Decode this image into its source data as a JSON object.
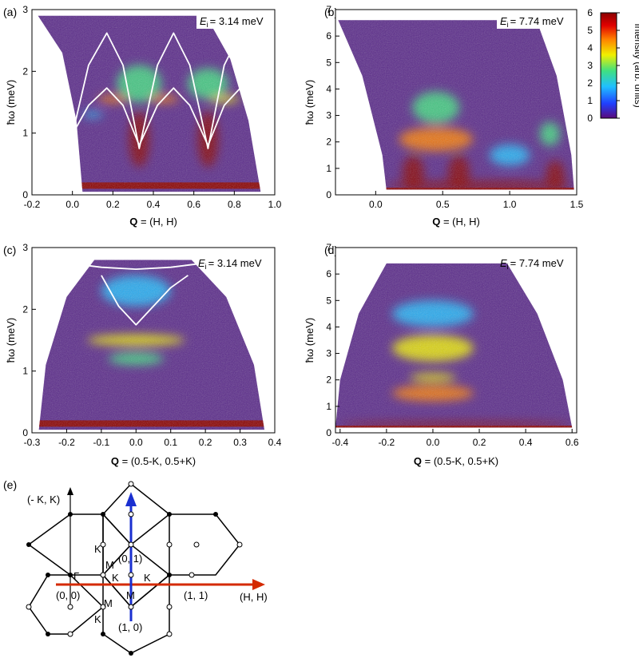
{
  "colors": {
    "map_stops": [
      "#5a0a7a",
      "#2040ff",
      "#20c0ff",
      "#40e080",
      "#f0f000",
      "#ff8000",
      "#e00000",
      "#8a0000"
    ],
    "background_map": "#5a2a8a",
    "low_energy_fill": "#8a0000",
    "dispersion_curve": "#ffffff",
    "arrow_HH": "#d42a00",
    "arrow_K": "#1a2fd0",
    "hexagon": "#000000"
  },
  "colorbar": {
    "label": "Intensity (arb. units)",
    "ticks": [
      "6",
      "5",
      "4",
      "3",
      "2",
      "1",
      "0"
    ],
    "min": 0,
    "max": 6
  },
  "chart_data": [
    {
      "id": "a",
      "panel_label": "(a)",
      "type": "heatmap",
      "ei_symbol": "E",
      "ei_sub": "i",
      "ei_value": "= 3.14 meV",
      "xlabel_bold": "Q",
      "xlabel_rest": "= (H, H)",
      "ylabel": "ħω (meV)",
      "xticks": [
        "-0.2",
        "0.0",
        "0.2",
        "0.4",
        "0.6",
        "0.8",
        "1.0"
      ],
      "yticks": [
        "0",
        "1",
        "2",
        "3"
      ],
      "xlim": [
        -0.2,
        1.0
      ],
      "ylim": [
        0,
        3
      ],
      "coverage": {
        "emax_top": 2.9,
        "left_curve": [
          [
            -0.17,
            2.9
          ],
          [
            -0.05,
            2.3
          ],
          [
            0.02,
            1.2
          ],
          [
            0.05,
            0.05
          ]
        ],
        "right_curve": [
          [
            0.66,
            2.9
          ],
          [
            0.78,
            2.2
          ],
          [
            0.87,
            1.2
          ],
          [
            0.93,
            0.05
          ]
        ]
      },
      "curves": [
        {
          "name": "upper",
          "points": [
            [
              0.0,
              0.98
            ],
            [
              0.08,
              2.1
            ],
            [
              0.17,
              2.62
            ],
            [
              0.25,
              2.1
            ],
            [
              0.33,
              0.75
            ],
            [
              0.42,
              2.1
            ],
            [
              0.5,
              2.62
            ],
            [
              0.58,
              2.1
            ],
            [
              0.67,
              0.75
            ],
            [
              0.75,
              2.1
            ],
            [
              0.83,
              2.62
            ]
          ]
        },
        {
          "name": "lower",
          "points": [
            [
              0.0,
              0.98
            ],
            [
              0.08,
              1.45
            ],
            [
              0.17,
              1.73
            ],
            [
              0.25,
              1.45
            ],
            [
              0.33,
              0.8
            ],
            [
              0.42,
              1.45
            ],
            [
              0.5,
              1.73
            ],
            [
              0.58,
              1.45
            ],
            [
              0.67,
              0.8
            ],
            [
              0.75,
              1.45
            ],
            [
              0.83,
              1.73
            ]
          ]
        }
      ],
      "features": [
        {
          "x": 0.33,
          "y": 0.9,
          "w": 0.1,
          "h": 0.9,
          "level": 7
        },
        {
          "x": 0.67,
          "y": 0.9,
          "w": 0.1,
          "h": 0.9,
          "level": 7
        },
        {
          "x": 0.2,
          "y": 1.55,
          "w": 0.15,
          "h": 0.12,
          "level": 5
        },
        {
          "x": 0.45,
          "y": 1.55,
          "w": 0.15,
          "h": 0.12,
          "level": 5
        },
        {
          "x": 0.75,
          "y": 1.55,
          "w": 0.15,
          "h": 0.12,
          "level": 4
        },
        {
          "x": 0.33,
          "y": 1.8,
          "w": 0.22,
          "h": 0.6,
          "level": 3
        },
        {
          "x": 0.67,
          "y": 1.8,
          "w": 0.2,
          "h": 0.5,
          "level": 3
        },
        {
          "x": 0.1,
          "y": 1.3,
          "w": 0.1,
          "h": 0.1,
          "level": 2
        }
      ]
    },
    {
      "id": "b",
      "panel_label": "(b)",
      "type": "heatmap",
      "ei_symbol": "E",
      "ei_sub": "i",
      "ei_value": "= 7.74 meV",
      "xlabel_bold": "Q",
      "xlabel_rest": "= (H, H)",
      "ylabel": "ħω (meV)",
      "xticks": [
        "0.0",
        "0.5",
        "1.0",
        "1.5"
      ],
      "yticks": [
        "0",
        "1",
        "2",
        "3",
        "4",
        "5",
        "6",
        "7"
      ],
      "xlim": [
        -0.3,
        1.5
      ],
      "ylim": [
        0,
        7
      ],
      "coverage": {
        "emax_top": 6.6,
        "left_curve": [
          [
            -0.28,
            6.6
          ],
          [
            -0.1,
            4.5
          ],
          [
            0.05,
            1.5
          ],
          [
            0.08,
            0.2
          ]
        ],
        "right_curve": [
          [
            1.2,
            6.6
          ],
          [
            1.35,
            4.5
          ],
          [
            1.46,
            1.5
          ],
          [
            1.48,
            0.2
          ]
        ]
      },
      "curves": [],
      "features": [
        {
          "x": 0.28,
          "y": 0.8,
          "w": 0.16,
          "h": 1.4,
          "level": 7
        },
        {
          "x": 0.62,
          "y": 0.8,
          "w": 0.16,
          "h": 1.4,
          "level": 7
        },
        {
          "x": 1.34,
          "y": 0.7,
          "w": 0.14,
          "h": 1.2,
          "level": 7
        },
        {
          "x": 0.78,
          "y": 0.35,
          "w": 1.4,
          "h": 0.35,
          "level": 7
        },
        {
          "x": 0.45,
          "y": 2.1,
          "w": 0.55,
          "h": 0.9,
          "level": 5
        },
        {
          "x": 0.45,
          "y": 3.3,
          "w": 0.35,
          "h": 1.2,
          "level": 3
        },
        {
          "x": 1.0,
          "y": 1.5,
          "w": 0.3,
          "h": 0.8,
          "level": 2
        },
        {
          "x": 1.3,
          "y": 2.3,
          "w": 0.15,
          "h": 0.9,
          "level": 3
        }
      ]
    },
    {
      "id": "c",
      "panel_label": "(c)",
      "type": "heatmap",
      "ei_symbol": "E",
      "ei_sub": "i",
      "ei_value": "= 3.14 meV",
      "xlabel_bold": "Q",
      "xlabel_rest": "= (0.5-K, 0.5+K)",
      "ylabel": "ħω (meV)",
      "xticks": [
        "-0.3",
        "-0.2",
        "-0.1",
        "0.0",
        "0.1",
        "0.2",
        "0.3",
        "0.4"
      ],
      "yticks": [
        "0",
        "1",
        "2",
        "3"
      ],
      "xlim": [
        -0.3,
        0.4
      ],
      "ylim": [
        0,
        3
      ],
      "coverage": {
        "emax_top": 2.8,
        "left_curve": [
          [
            -0.12,
            2.8
          ],
          [
            -0.2,
            2.2
          ],
          [
            -0.26,
            1.1
          ],
          [
            -0.28,
            0.05
          ]
        ],
        "right_curve": [
          [
            0.16,
            2.8
          ],
          [
            0.26,
            2.2
          ],
          [
            0.34,
            1.1
          ],
          [
            0.37,
            0.05
          ]
        ]
      },
      "curves": [
        {
          "name": "upper",
          "points": [
            [
              -0.2,
              2.75
            ],
            [
              -0.1,
              2.68
            ],
            [
              0.0,
              2.65
            ],
            [
              0.1,
              2.68
            ],
            [
              0.2,
              2.75
            ]
          ]
        },
        {
          "name": "lower",
          "points": [
            [
              -0.1,
              2.55
            ],
            [
              -0.05,
              2.05
            ],
            [
              0.0,
              1.75
            ],
            [
              0.05,
              2.05
            ],
            [
              0.1,
              2.35
            ],
            [
              0.15,
              2.55
            ]
          ]
        }
      ],
      "features": [
        {
          "x": 0.0,
          "y": 1.5,
          "w": 0.28,
          "h": 0.18,
          "level": 4
        },
        {
          "x": 0.0,
          "y": 1.2,
          "w": 0.16,
          "h": 0.2,
          "level": 3
        },
        {
          "x": 0.0,
          "y": 2.3,
          "w": 0.2,
          "h": 0.5,
          "level": 2
        }
      ]
    },
    {
      "id": "d",
      "panel_label": "(d)",
      "type": "heatmap",
      "ei_symbol": "E",
      "ei_sub": "i",
      "ei_value": "= 7.74 meV",
      "xlabel_bold": "Q",
      "xlabel_rest": "= (0.5-K, 0.5+K)",
      "ylabel": "ħω (meV)",
      "xticks": [
        "-0.4",
        "-0.2",
        "0.0",
        "0.2",
        "0.4",
        "0.6"
      ],
      "yticks": [
        "0",
        "1",
        "2",
        "3",
        "4",
        "5",
        "6",
        "7"
      ],
      "xlim": [
        -0.42,
        0.62
      ],
      "ylim": [
        0,
        7
      ],
      "coverage": {
        "emax_top": 6.4,
        "left_curve": [
          [
            -0.2,
            6.4
          ],
          [
            -0.32,
            4.5
          ],
          [
            -0.4,
            2.0
          ],
          [
            -0.42,
            0.2
          ]
        ],
        "right_curve": [
          [
            0.32,
            6.4
          ],
          [
            0.45,
            4.5
          ],
          [
            0.56,
            2.0
          ],
          [
            0.6,
            0.2
          ]
        ]
      },
      "curves": [],
      "features": [
        {
          "x": 0.0,
          "y": 3.2,
          "w": 0.35,
          "h": 1.0,
          "level": 4
        },
        {
          "x": 0.0,
          "y": 1.5,
          "w": 0.35,
          "h": 0.6,
          "level": 5
        },
        {
          "x": 0.0,
          "y": 2.1,
          "w": 0.2,
          "h": 0.3,
          "level": 4
        },
        {
          "x": 0.1,
          "y": 0.3,
          "w": 1.0,
          "h": 0.22,
          "level": 7
        },
        {
          "x": 0.0,
          "y": 4.5,
          "w": 0.35,
          "h": 1.0,
          "level": 2
        }
      ]
    }
  ],
  "diagram": {
    "panel_label": "(e)",
    "axis_vertical_label": "(- K, K)",
    "axis_horizontal_label": "(H, H)",
    "labels": {
      "gamma": "Γ",
      "origin": "(0, 0)",
      "p11": "(1, 1)",
      "p01": "(0, 1)",
      "p10": "(1, 0)",
      "k_top": "K",
      "m_top": "M",
      "k_left": "K",
      "k_right": "K",
      "m_center": "M",
      "m_bottom": "M",
      "k_bottom": "K"
    }
  }
}
